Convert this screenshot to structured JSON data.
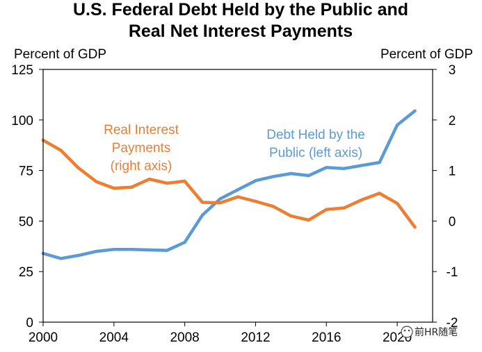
{
  "chart_data": {
    "type": "line",
    "title_line1": "U.S. Federal Debt Held by the Public and",
    "title_line2": "Real Net Interest Payments",
    "left_unit": "Percent of GDP",
    "right_unit": "Percent of GDP",
    "x_ticks": [
      "2000",
      "2004",
      "2008",
      "2012",
      "2016",
      "2020"
    ],
    "xlim": [
      2000,
      2022
    ],
    "left_ylim": [
      0,
      125
    ],
    "left_ticks": [
      "0",
      "25",
      "50",
      "75",
      "100",
      "125"
    ],
    "right_ylim": [
      -2,
      3
    ],
    "right_ticks": [
      "-2",
      "-1",
      "0",
      "1",
      "2",
      "3"
    ],
    "series": [
      {
        "name": "Debt Held by the Public (left axis)",
        "axis": "left",
        "color": "#5B9BD5",
        "label_lines": [
          "Debt Held by the",
          "Public (left axis)"
        ],
        "x": [
          2000,
          2001,
          2002,
          2003,
          2004,
          2005,
          2006,
          2007,
          2008,
          2009,
          2010,
          2011,
          2012,
          2013,
          2014,
          2015,
          2016,
          2017,
          2018,
          2019,
          2020,
          2021
        ],
        "values": [
          34,
          31.5,
          33,
          35,
          36,
          36,
          35.7,
          35.5,
          39.5,
          53,
          61,
          65.5,
          70,
          72,
          73.5,
          72.5,
          76.5,
          76,
          77.5,
          79,
          97.5,
          104.5
        ]
      },
      {
        "name": "Real Interest Payments (right axis)",
        "axis": "right",
        "color": "#ED7D31",
        "label_lines": [
          "Real Interest",
          "Payments",
          "(right axis)"
        ],
        "x": [
          2000,
          2001,
          2002,
          2003,
          2004,
          2005,
          2006,
          2007,
          2008,
          2009,
          2010,
          2011,
          2012,
          2013,
          2014,
          2015,
          2016,
          2017,
          2018,
          2019,
          2020,
          2021
        ],
        "values": [
          1.6,
          1.4,
          1.05,
          0.78,
          0.65,
          0.67,
          0.83,
          0.75,
          0.79,
          0.37,
          0.36,
          0.48,
          0.39,
          0.29,
          0.1,
          0.02,
          0.23,
          0.26,
          0.42,
          0.55,
          0.35,
          -0.12
        ]
      }
    ]
  },
  "watermark": {
    "text": "前HR随笔"
  }
}
